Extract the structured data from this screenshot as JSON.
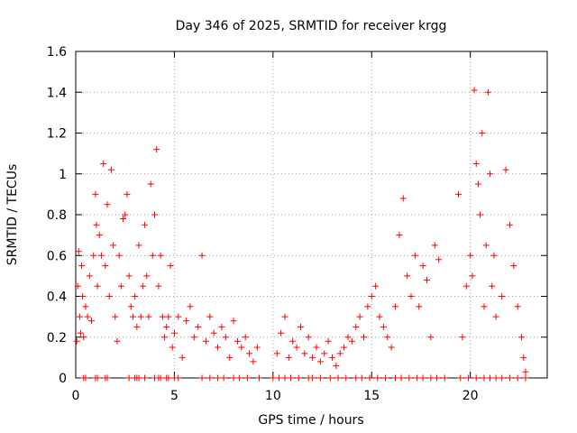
{
  "chart_data": {
    "type": "scatter",
    "title": "Day 346 of 2025, SRMTID for receiver krgg",
    "xlabel": "GPS time / hours",
    "ylabel": "SRMTID / TECUs",
    "xlim": [
      0,
      23.9
    ],
    "ylim": [
      0,
      1.6
    ],
    "grid": true,
    "marker": "+",
    "color": "#ff0000",
    "x_ticks": [
      0,
      5,
      10,
      15,
      20
    ],
    "x_tick_labels": [
      "0",
      "5",
      "10",
      "15",
      "20"
    ],
    "y_ticks": [
      0,
      0.2,
      0.4,
      0.6,
      0.8,
      1.0,
      1.2,
      1.4,
      1.6
    ],
    "y_tick_labels": [
      "0",
      "0.2",
      "0.4",
      "0.6",
      "0.8",
      "1",
      "1.2",
      "1.4",
      "1.6"
    ],
    "series": [
      {
        "name": "SRMTID",
        "x": [
          0.05,
          0.1,
          0.15,
          0.2,
          0.25,
          0.3,
          0.35,
          0.4,
          0.5,
          0.6,
          0.7,
          0.8,
          0.9,
          1.0,
          1.05,
          1.1,
          1.2,
          1.3,
          1.4,
          1.5,
          1.6,
          1.7,
          1.8,
          1.9,
          2.0,
          2.1,
          2.2,
          2.3,
          2.4,
          2.5,
          2.6,
          2.7,
          2.8,
          2.9,
          3.0,
          3.1,
          3.2,
          3.3,
          3.4,
          3.5,
          3.6,
          3.7,
          3.8,
          3.9,
          4.0,
          4.1,
          4.2,
          4.3,
          4.4,
          4.5,
          4.6,
          4.7,
          4.8,
          4.9,
          5.0,
          5.2,
          5.4,
          5.6,
          5.8,
          6.0,
          6.2,
          6.4,
          6.6,
          6.8,
          7.0,
          7.2,
          7.4,
          7.6,
          7.8,
          8.0,
          8.2,
          8.4,
          8.6,
          8.8,
          9.0,
          9.2,
          10.2,
          10.4,
          10.6,
          10.8,
          11.0,
          11.2,
          11.4,
          11.6,
          11.8,
          12.0,
          12.2,
          12.4,
          12.6,
          12.8,
          13.0,
          13.2,
          13.4,
          13.6,
          13.8,
          14.0,
          14.2,
          14.4,
          14.6,
          14.8,
          15.0,
          15.2,
          15.4,
          15.6,
          15.8,
          16.0,
          16.2,
          16.4,
          16.6,
          16.8,
          17.0,
          17.2,
          17.4,
          17.6,
          17.8,
          18.0,
          18.2,
          18.4,
          19.4,
          19.6,
          19.8,
          20.0,
          20.1,
          20.2,
          20.3,
          20.4,
          20.5,
          20.6,
          20.7,
          20.8,
          20.9,
          21.0,
          21.1,
          21.2,
          21.3,
          21.6,
          21.8,
          22.0,
          22.2,
          22.4,
          22.6,
          22.7,
          22.8
        ],
        "y": [
          0.18,
          0.45,
          0.62,
          0.3,
          0.22,
          0.55,
          0.4,
          0.2,
          0.35,
          0.3,
          0.5,
          0.28,
          0.6,
          0.9,
          0.75,
          0.45,
          0.7,
          0.6,
          1.05,
          0.55,
          0.85,
          0.4,
          1.02,
          0.65,
          0.3,
          0.18,
          0.6,
          0.45,
          0.78,
          0.8,
          0.9,
          0.5,
          0.35,
          0.3,
          0.4,
          0.25,
          0.65,
          0.3,
          0.45,
          0.75,
          0.5,
          0.3,
          0.95,
          0.6,
          0.8,
          1.12,
          0.45,
          0.6,
          0.3,
          0.2,
          0.25,
          0.3,
          0.55,
          0.15,
          0.22,
          0.3,
          0.1,
          0.28,
          0.35,
          0.2,
          0.25,
          0.6,
          0.18,
          0.3,
          0.22,
          0.15,
          0.25,
          0.2,
          0.1,
          0.28,
          0.18,
          0.15,
          0.2,
          0.12,
          0.08,
          0.15,
          0.12,
          0.22,
          0.3,
          0.1,
          0.18,
          0.15,
          0.25,
          0.12,
          0.2,
          0.1,
          0.15,
          0.08,
          0.12,
          0.18,
          0.1,
          0.06,
          0.12,
          0.15,
          0.2,
          0.18,
          0.25,
          0.3,
          0.2,
          0.35,
          0.4,
          0.45,
          0.3,
          0.25,
          0.2,
          0.15,
          0.35,
          0.7,
          0.88,
          0.5,
          0.4,
          0.6,
          0.35,
          0.55,
          0.48,
          0.2,
          0.65,
          0.58,
          0.9,
          0.2,
          0.45,
          0.6,
          0.5,
          1.41,
          1.05,
          0.95,
          0.8,
          1.2,
          0.35,
          0.65,
          1.4,
          1.0,
          0.45,
          0.6,
          0.3,
          0.4,
          1.02,
          0.75,
          0.55,
          0.35,
          0.2,
          0.1,
          0.03
        ],
        "zero_x": [
          0.4,
          0.5,
          1.0,
          1.1,
          1.5,
          1.6,
          2.7,
          3.0,
          3.1,
          3.2,
          3.5,
          4.0,
          4.2,
          4.3,
          4.6,
          4.7,
          5.0,
          5.2,
          6.4,
          6.8,
          7.2,
          7.5,
          8.0,
          8.3,
          8.7,
          9.3,
          10.0,
          10.3,
          10.6,
          10.9,
          11.3,
          11.8,
          12.0,
          12.4,
          12.9,
          13.3,
          13.7,
          14.2,
          14.5,
          14.9,
          15.3,
          15.7,
          16.2,
          16.5,
          16.9,
          17.3,
          17.6,
          18.0,
          18.3,
          18.7,
          19.5,
          19.9,
          20.3,
          20.7,
          21.0,
          21.3,
          21.6,
          22.0,
          22.4,
          22.8
        ]
      }
    ]
  }
}
